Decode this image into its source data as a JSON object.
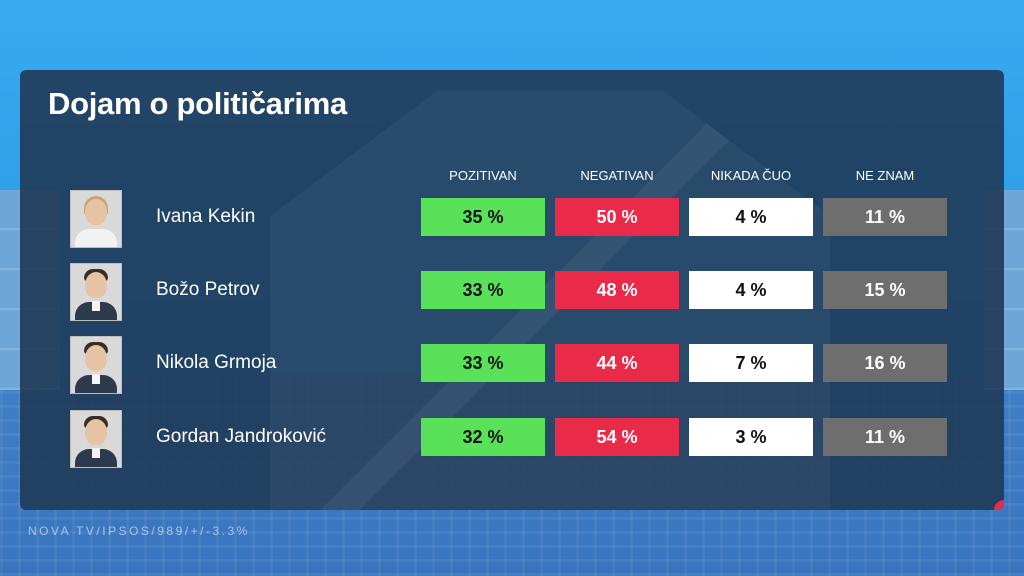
{
  "title": "Dojam o političarima",
  "columns": [
    "POZITIVAN",
    "NEGATIVAN",
    "NIKADA ČUO",
    "NE ZNAM"
  ],
  "colors": {
    "pozitivan": "#59e15a",
    "negativan": "#e92a49",
    "nikada_cuo": "#ffffff",
    "ne_znam": "#6e6e6e",
    "panel": "#1f3a58"
  },
  "rows": [
    {
      "name": "Ivana Kekin",
      "avatar": "portrait-woman-icon",
      "values": [
        "35 %",
        "50 %",
        "4 %",
        "11 %"
      ]
    },
    {
      "name": "Božo Petrov",
      "avatar": "portrait-man-icon",
      "values": [
        "33 %",
        "48 %",
        "4 %",
        "15 %"
      ]
    },
    {
      "name": "Nikola Grmoja",
      "avatar": "portrait-man-icon",
      "values": [
        "33 %",
        "44 %",
        "7 %",
        "16 %"
      ]
    },
    {
      "name": "Gordan Jandroković",
      "avatar": "portrait-man-icon",
      "values": [
        "32 %",
        "54 %",
        "3 %",
        "11 %"
      ]
    }
  ],
  "source": "NOVA TV/IPSOS/989/+/-3.3%"
}
